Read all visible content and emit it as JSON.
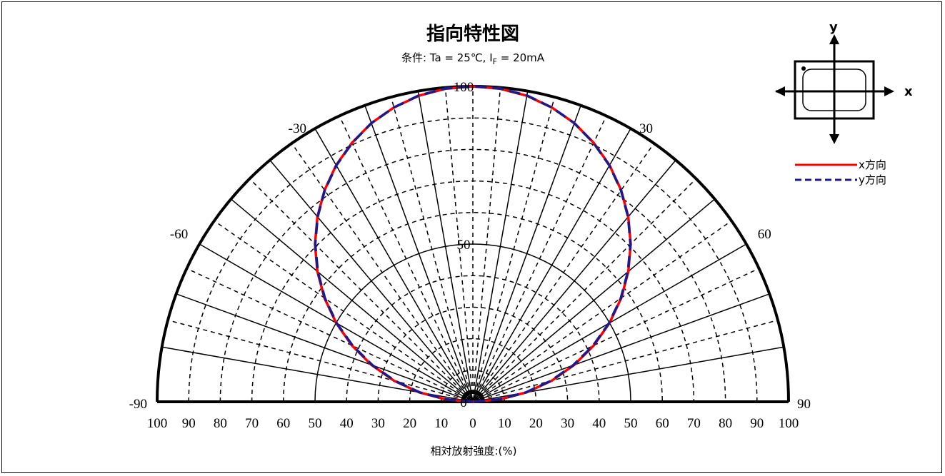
{
  "chart_data": {
    "type": "polar-line",
    "title": "指向特性図",
    "subtitle_prefix": "条件: Ta = 25℃, I",
    "subtitle_subscript": "F",
    "subtitle_suffix": " = 20mA",
    "xlabel": "相対放射強度:(%)",
    "angle_range": [
      -90,
      90
    ],
    "angle_labels": [
      "-90",
      "-60",
      "-30",
      "30",
      "60",
      "90"
    ],
    "radius_labels": [
      "0",
      "50",
      "100"
    ],
    "radius_range": [
      0,
      100
    ],
    "x_tick_labels": [
      "100",
      "90",
      "80",
      "70",
      "60",
      "50",
      "40",
      "30",
      "20",
      "10",
      "0",
      "10",
      "20",
      "30",
      "40",
      "50",
      "60",
      "70",
      "80",
      "90",
      "100"
    ],
    "grid": true,
    "legend_position": "top-right",
    "series": [
      {
        "name": "x方向",
        "color": "#ff0000",
        "style": "solid",
        "angles": [
          -90,
          -85,
          -80,
          -75,
          -70,
          -65,
          -60,
          -55,
          -50,
          -45,
          -40,
          -35,
          -30,
          -25,
          -20,
          -15,
          -10,
          -5,
          0,
          5,
          10,
          15,
          20,
          25,
          30,
          35,
          40,
          45,
          50,
          55,
          60,
          65,
          70,
          75,
          80,
          85,
          90
        ],
        "values": [
          0,
          8.7,
          17.4,
          25.9,
          34.2,
          42.3,
          50,
          57.4,
          64.3,
          70.7,
          76.6,
          81.9,
          86.6,
          90.6,
          94,
          96.6,
          98.5,
          99.6,
          100,
          99.6,
          98.5,
          96.6,
          94,
          90.6,
          86.6,
          81.9,
          76.6,
          70.7,
          64.3,
          57.4,
          50,
          42.3,
          34.2,
          25.9,
          17.4,
          8.7,
          0
        ]
      },
      {
        "name": "y方向",
        "color": "#1a1a8c",
        "style": "dashed",
        "angles": [
          -90,
          -85,
          -80,
          -75,
          -70,
          -65,
          -60,
          -55,
          -50,
          -45,
          -40,
          -35,
          -30,
          -25,
          -20,
          -15,
          -10,
          -5,
          0,
          5,
          10,
          15,
          20,
          25,
          30,
          35,
          40,
          45,
          50,
          55,
          60,
          65,
          70,
          75,
          80,
          85,
          90
        ],
        "values": [
          0,
          8.2,
          17.0,
          25.5,
          33.8,
          42.0,
          49.8,
          57.2,
          64.1,
          70.6,
          76.5,
          81.8,
          86.5,
          90.5,
          94,
          96.6,
          98.6,
          99.7,
          100,
          99.7,
          98.6,
          96.6,
          94,
          90.5,
          86.5,
          81.8,
          76.5,
          70.6,
          64.1,
          57.2,
          49.8,
          42.0,
          33.8,
          25.5,
          17.0,
          8.2,
          0
        ]
      }
    ]
  },
  "inset": {
    "x_label": "x",
    "y_label": "y"
  }
}
